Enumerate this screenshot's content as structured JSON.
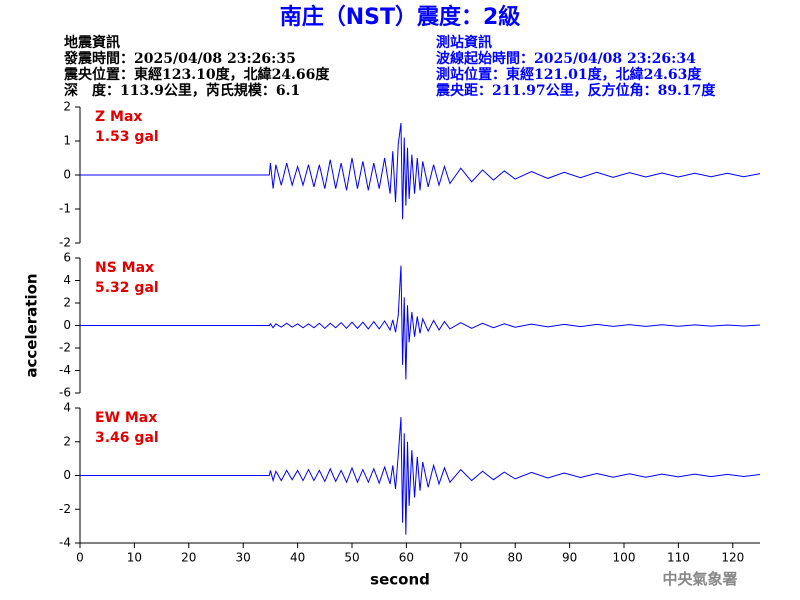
{
  "header": {
    "title": "南庄（NST）震度：2級",
    "left": [
      "地震資訊",
      "發震時間：2025/04/08 23:26:35",
      "震央位置：東經123.10度，北緯24.66度",
      "深　度：113.9公里，芮氏規模：6.1"
    ],
    "right": [
      "測站資訊",
      "波線起始時間：2025/04/08 23:26:34",
      "測站位置：東經121.01度，北緯24.63度",
      "震央距：211.97公里，反方位角：89.17度"
    ]
  },
  "footer": {
    "credit": "中央氣象署"
  },
  "chart_data": [
    {
      "type": "line",
      "annotations": [
        "Z Max",
        "1.53 gal"
      ],
      "x": [
        0,
        34.8,
        35,
        35.5,
        36,
        37,
        38,
        39,
        40,
        41,
        42,
        43,
        44,
        45,
        46,
        47,
        48,
        49,
        50,
        51,
        52,
        53,
        54,
        55,
        56,
        57,
        57.5,
        58,
        58.5,
        59,
        59.3,
        59.6,
        59.9,
        60.2,
        60.5,
        61,
        61.5,
        62,
        62.5,
        63,
        64,
        65,
        66,
        67,
        68,
        70,
        72,
        74,
        76,
        78,
        80,
        83,
        86,
        89,
        92,
        95,
        98,
        101,
        104,
        107,
        110,
        113,
        116,
        119,
        122,
        125
      ],
      "series": [
        {
          "color": "#0000ff",
          "values": [
            0,
            0,
            0.35,
            -0.4,
            0.3,
            -0.3,
            0.35,
            -0.3,
            0.25,
            -0.3,
            0.3,
            -0.35,
            0.3,
            -0.4,
            0.45,
            -0.4,
            0.35,
            -0.45,
            0.5,
            -0.4,
            0.4,
            -0.45,
            0.35,
            -0.4,
            0.5,
            -0.55,
            0.7,
            -0.8,
            0.9,
            1.53,
            -1.3,
            1.1,
            -0.9,
            0.8,
            -0.7,
            0.6,
            -0.55,
            0.5,
            -0.45,
            0.4,
            -0.35,
            0.3,
            -0.3,
            0.25,
            -0.25,
            0.2,
            -0.2,
            0.15,
            -0.15,
            0.12,
            -0.12,
            0.1,
            -0.1,
            0.08,
            -0.08,
            0.08,
            -0.07,
            0.07,
            -0.06,
            0.06,
            -0.06,
            0.05,
            -0.05,
            0.05,
            -0.05,
            0.04
          ]
        }
      ],
      "xlim": [
        0,
        125
      ],
      "ylim": [
        -2,
        2
      ],
      "yticks": [
        -2,
        -1,
        0,
        1,
        2
      ]
    },
    {
      "type": "line",
      "annotations": [
        "NS Max",
        "5.32 gal"
      ],
      "ylabel": "acceleration",
      "x": [
        0,
        34.8,
        35,
        35.5,
        36,
        37,
        38,
        39,
        40,
        41,
        42,
        43,
        44,
        45,
        46,
        47,
        48,
        49,
        50,
        51,
        52,
        53,
        54,
        55,
        56,
        57,
        57.5,
        58,
        58.5,
        59,
        59.3,
        59.6,
        59.9,
        60.2,
        60.5,
        61,
        61.5,
        62,
        62.5,
        63,
        64,
        65,
        66,
        67,
        68,
        70,
        72,
        74,
        76,
        78,
        80,
        83,
        86,
        89,
        92,
        95,
        98,
        101,
        104,
        107,
        110,
        113,
        116,
        119,
        122,
        125
      ],
      "series": [
        {
          "color": "#0000ff",
          "values": [
            0,
            0,
            0.15,
            -0.2,
            0.15,
            -0.15,
            0.2,
            -0.15,
            0.15,
            -0.2,
            0.15,
            -0.2,
            0.2,
            -0.25,
            0.2,
            -0.2,
            0.25,
            -0.25,
            0.3,
            -0.25,
            0.3,
            -0.3,
            0.35,
            -0.3,
            0.4,
            -0.4,
            0.5,
            -0.6,
            0.9,
            5.32,
            -3.5,
            2.5,
            -4.8,
            1.8,
            -1.5,
            1.2,
            -1.0,
            0.8,
            -0.7,
            0.6,
            -0.5,
            0.45,
            -0.4,
            0.35,
            -0.3,
            0.25,
            -0.25,
            0.2,
            -0.2,
            0.15,
            -0.15,
            0.12,
            -0.12,
            0.1,
            -0.1,
            0.1,
            -0.08,
            0.08,
            -0.08,
            0.07,
            -0.07,
            0.06,
            -0.06,
            0.05,
            -0.05,
            0.05
          ]
        }
      ],
      "xlim": [
        0,
        125
      ],
      "ylim": [
        -6,
        6
      ],
      "yticks": [
        -6,
        -4,
        -2,
        0,
        2,
        4,
        6
      ]
    },
    {
      "type": "line",
      "annotations": [
        "EW Max",
        "3.46 gal"
      ],
      "xlabel": "second",
      "x": [
        0,
        34.8,
        35,
        35.5,
        36,
        37,
        38,
        39,
        40,
        41,
        42,
        43,
        44,
        45,
        46,
        47,
        48,
        49,
        50,
        51,
        52,
        53,
        54,
        55,
        56,
        57,
        57.5,
        58,
        58.5,
        59,
        59.3,
        59.6,
        59.9,
        60.2,
        60.5,
        61,
        61.5,
        62,
        62.5,
        63,
        64,
        65,
        66,
        67,
        68,
        70,
        72,
        74,
        76,
        78,
        80,
        83,
        86,
        89,
        92,
        95,
        98,
        101,
        104,
        107,
        110,
        113,
        116,
        119,
        122,
        125
      ],
      "series": [
        {
          "color": "#0000ff",
          "values": [
            0,
            0,
            0.3,
            -0.3,
            0.25,
            -0.3,
            0.3,
            -0.25,
            0.3,
            -0.3,
            0.35,
            -0.3,
            0.3,
            -0.35,
            0.4,
            -0.35,
            0.3,
            -0.4,
            0.45,
            -0.4,
            0.35,
            -0.4,
            0.4,
            -0.45,
            0.5,
            -0.5,
            0.6,
            -0.8,
            1.2,
            3.46,
            -2.8,
            2.5,
            -3.5,
            2.0,
            -1.8,
            1.5,
            -1.3,
            1.1,
            -0.9,
            0.8,
            -0.7,
            0.6,
            -0.5,
            0.45,
            -0.4,
            0.35,
            -0.3,
            0.25,
            -0.25,
            0.2,
            -0.2,
            0.18,
            -0.15,
            0.15,
            -0.12,
            0.12,
            -0.1,
            0.1,
            -0.1,
            0.08,
            -0.08,
            0.08,
            -0.07,
            0.07,
            -0.06,
            0.06
          ]
        }
      ],
      "xlim": [
        0,
        125
      ],
      "xticks": [
        0,
        10,
        20,
        30,
        40,
        50,
        60,
        70,
        80,
        90,
        100,
        110,
        120
      ],
      "ylim": [
        -4,
        4
      ],
      "yticks": [
        -4,
        -2,
        0,
        2,
        4
      ]
    }
  ]
}
